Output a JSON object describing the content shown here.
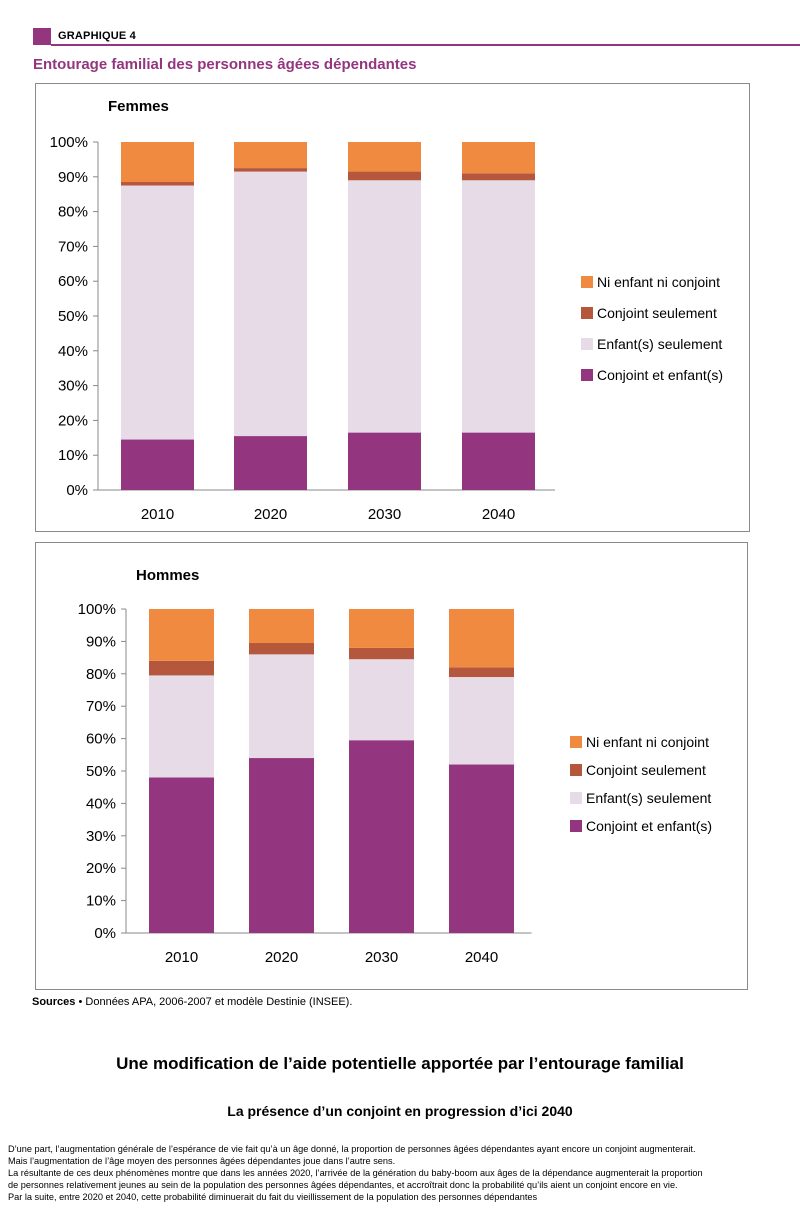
{
  "header": {
    "label": "GRAPHIQUE 4",
    "title": "Entourage familial des personnes âgées dépendantes",
    "accent_color": "#93367f"
  },
  "legend_items": [
    "Ni enfant ni conjoint",
    "Conjoint seulement",
    "Enfant(s) seulement",
    "Conjoint et enfant(s)"
  ],
  "chart_data": [
    {
      "type": "bar",
      "stacked": true,
      "title": "Femmes",
      "categories": [
        "2010",
        "2020",
        "2030",
        "2040"
      ],
      "y_ticks": [
        "0%",
        "10%",
        "20%",
        "30%",
        "40%",
        "50%",
        "60%",
        "70%",
        "80%",
        "90%",
        "100%"
      ],
      "ylim": [
        0,
        100
      ],
      "grid": false,
      "legend_position": "right",
      "series": [
        {
          "name": "Conjoint et enfant(s)",
          "color": "#93367f",
          "values": [
            14.5,
            15.5,
            16.5,
            16.5
          ]
        },
        {
          "name": "Enfant(s) seulement",
          "color": "#e8dbe8",
          "values": [
            73,
            76,
            72.5,
            72.5
          ]
        },
        {
          "name": "Conjoint seulement",
          "color": "#b5573c",
          "values": [
            1,
            1,
            2.5,
            2
          ]
        },
        {
          "name": "Ni enfant ni conjoint",
          "color": "#f08a40",
          "values": [
            11.5,
            7.5,
            8.5,
            9
          ]
        }
      ]
    },
    {
      "type": "bar",
      "stacked": true,
      "title": "Hommes",
      "categories": [
        "2010",
        "2020",
        "2030",
        "2040"
      ],
      "y_ticks": [
        "0%",
        "10%",
        "20%",
        "30%",
        "40%",
        "50%",
        "60%",
        "70%",
        "80%",
        "90%",
        "100%"
      ],
      "ylim": [
        0,
        100
      ],
      "grid": false,
      "legend_position": "right",
      "series": [
        {
          "name": "Conjoint et enfant(s)",
          "color": "#93367f",
          "values": [
            48,
            54,
            59.5,
            52
          ]
        },
        {
          "name": "Enfant(s) seulement",
          "color": "#e8dbe8",
          "values": [
            31.5,
            32,
            25,
            27
          ]
        },
        {
          "name": "Conjoint seulement",
          "color": "#b5573c",
          "values": [
            4.5,
            3.5,
            3.5,
            3
          ]
        },
        {
          "name": "Ni enfant ni conjoint",
          "color": "#f08a40",
          "values": [
            16,
            10.5,
            12,
            18
          ]
        }
      ]
    }
  ],
  "sources": {
    "label": "Sources",
    "text": "• Données APA, 2006-2007 et modèle Destinie (INSEE)."
  },
  "heading_main": "Une modification de l’aide potentielle apportée par l’entourage familial",
  "heading_sub": "La présence d’un conjoint en progression d’ici 2040",
  "notes": [
    "D’une part, l’augmentation générale de l’espérance de vie fait qu’à un âge donné, la proportion de personnes âgées dépendantes ayant encore un conjoint augmenterait.",
    "Mais l’augmentation de l’âge moyen des personnes âgées dépendantes joue dans l’autre sens.",
    "La résultante de ces deux phénomènes montre que dans les années 2020, l’arrivée de la génération du baby-boom aux âges de la dépendance augmenterait la proportion",
    "de personnes relativement jeunes au sein de la population des personnes âgées dépendantes, et accroîtrait donc la probabilité qu’ils aient un conjoint encore en vie.",
    "Par la suite, entre 2020 et 2040, cette probabilité diminuerait du fait du vieillissement de la population des personnes dépendantes"
  ]
}
